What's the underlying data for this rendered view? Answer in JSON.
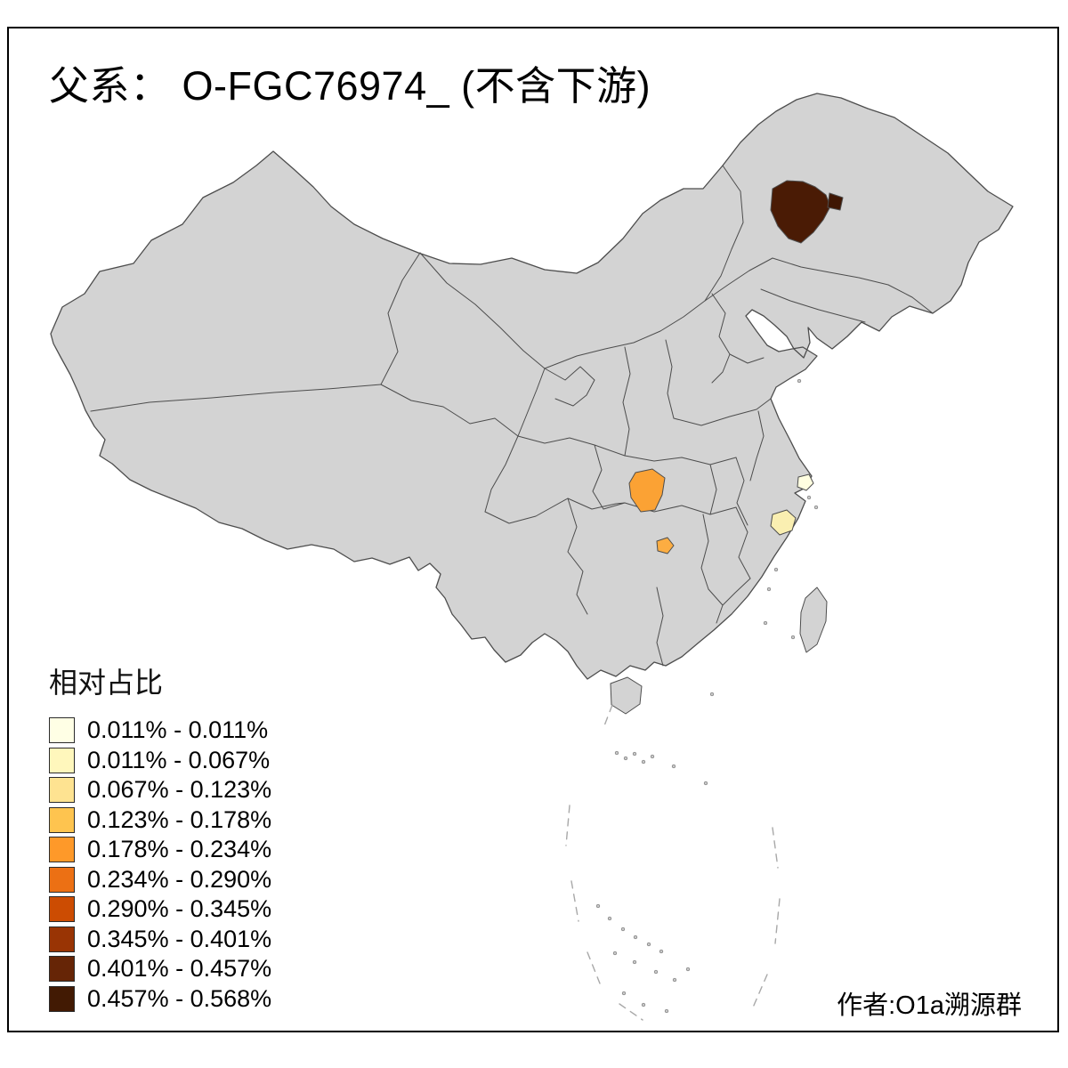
{
  "title": "父系： O-FGC76974_ (不含下游)",
  "legend": {
    "title": "相对占比",
    "entries": [
      {
        "label": "0.011% - 0.011%",
        "color": "#FFFFE5"
      },
      {
        "label": "0.011% - 0.067%",
        "color": "#FFF7BC"
      },
      {
        "label": "0.067% - 0.123%",
        "color": "#FEE391"
      },
      {
        "label": "0.123% - 0.178%",
        "color": "#FEC44F"
      },
      {
        "label": "0.178% - 0.234%",
        "color": "#FE9929"
      },
      {
        "label": "0.234% - 0.290%",
        "color": "#EC7014"
      },
      {
        "label": "0.290% - 0.345%",
        "color": "#CC4C02"
      },
      {
        "label": "0.345% - 0.401%",
        "color": "#993404"
      },
      {
        "label": "0.401% - 0.457%",
        "color": "#662506"
      },
      {
        "label": "0.457% - 0.568%",
        "color": "#421A03"
      }
    ]
  },
  "credit": "作者:O1a溯源群",
  "map": {
    "base_fill": "#D3D3D3",
    "border_color": "#4D4D4D",
    "regions": [
      {
        "id": "northeast-main",
        "color": "#4A1B05",
        "legend_bin": "0.457% - 0.568%"
      },
      {
        "id": "northeast-small",
        "color": "#3E1603",
        "legend_bin": "0.457% - 0.568%"
      },
      {
        "id": "sichuan-basin",
        "color": "#FBA234",
        "legend_bin": "0.178% - 0.234%"
      },
      {
        "id": "hunan-small",
        "color": "#FCAD42",
        "legend_bin": "0.123% - 0.178%"
      },
      {
        "id": "zhejiang-coastal",
        "color": "#FAEFB1",
        "legend_bin": "0.011% - 0.067%"
      },
      {
        "id": "shanghai",
        "color": "#FFFEE0",
        "legend_bin": "0.011% - 0.011%"
      }
    ]
  }
}
